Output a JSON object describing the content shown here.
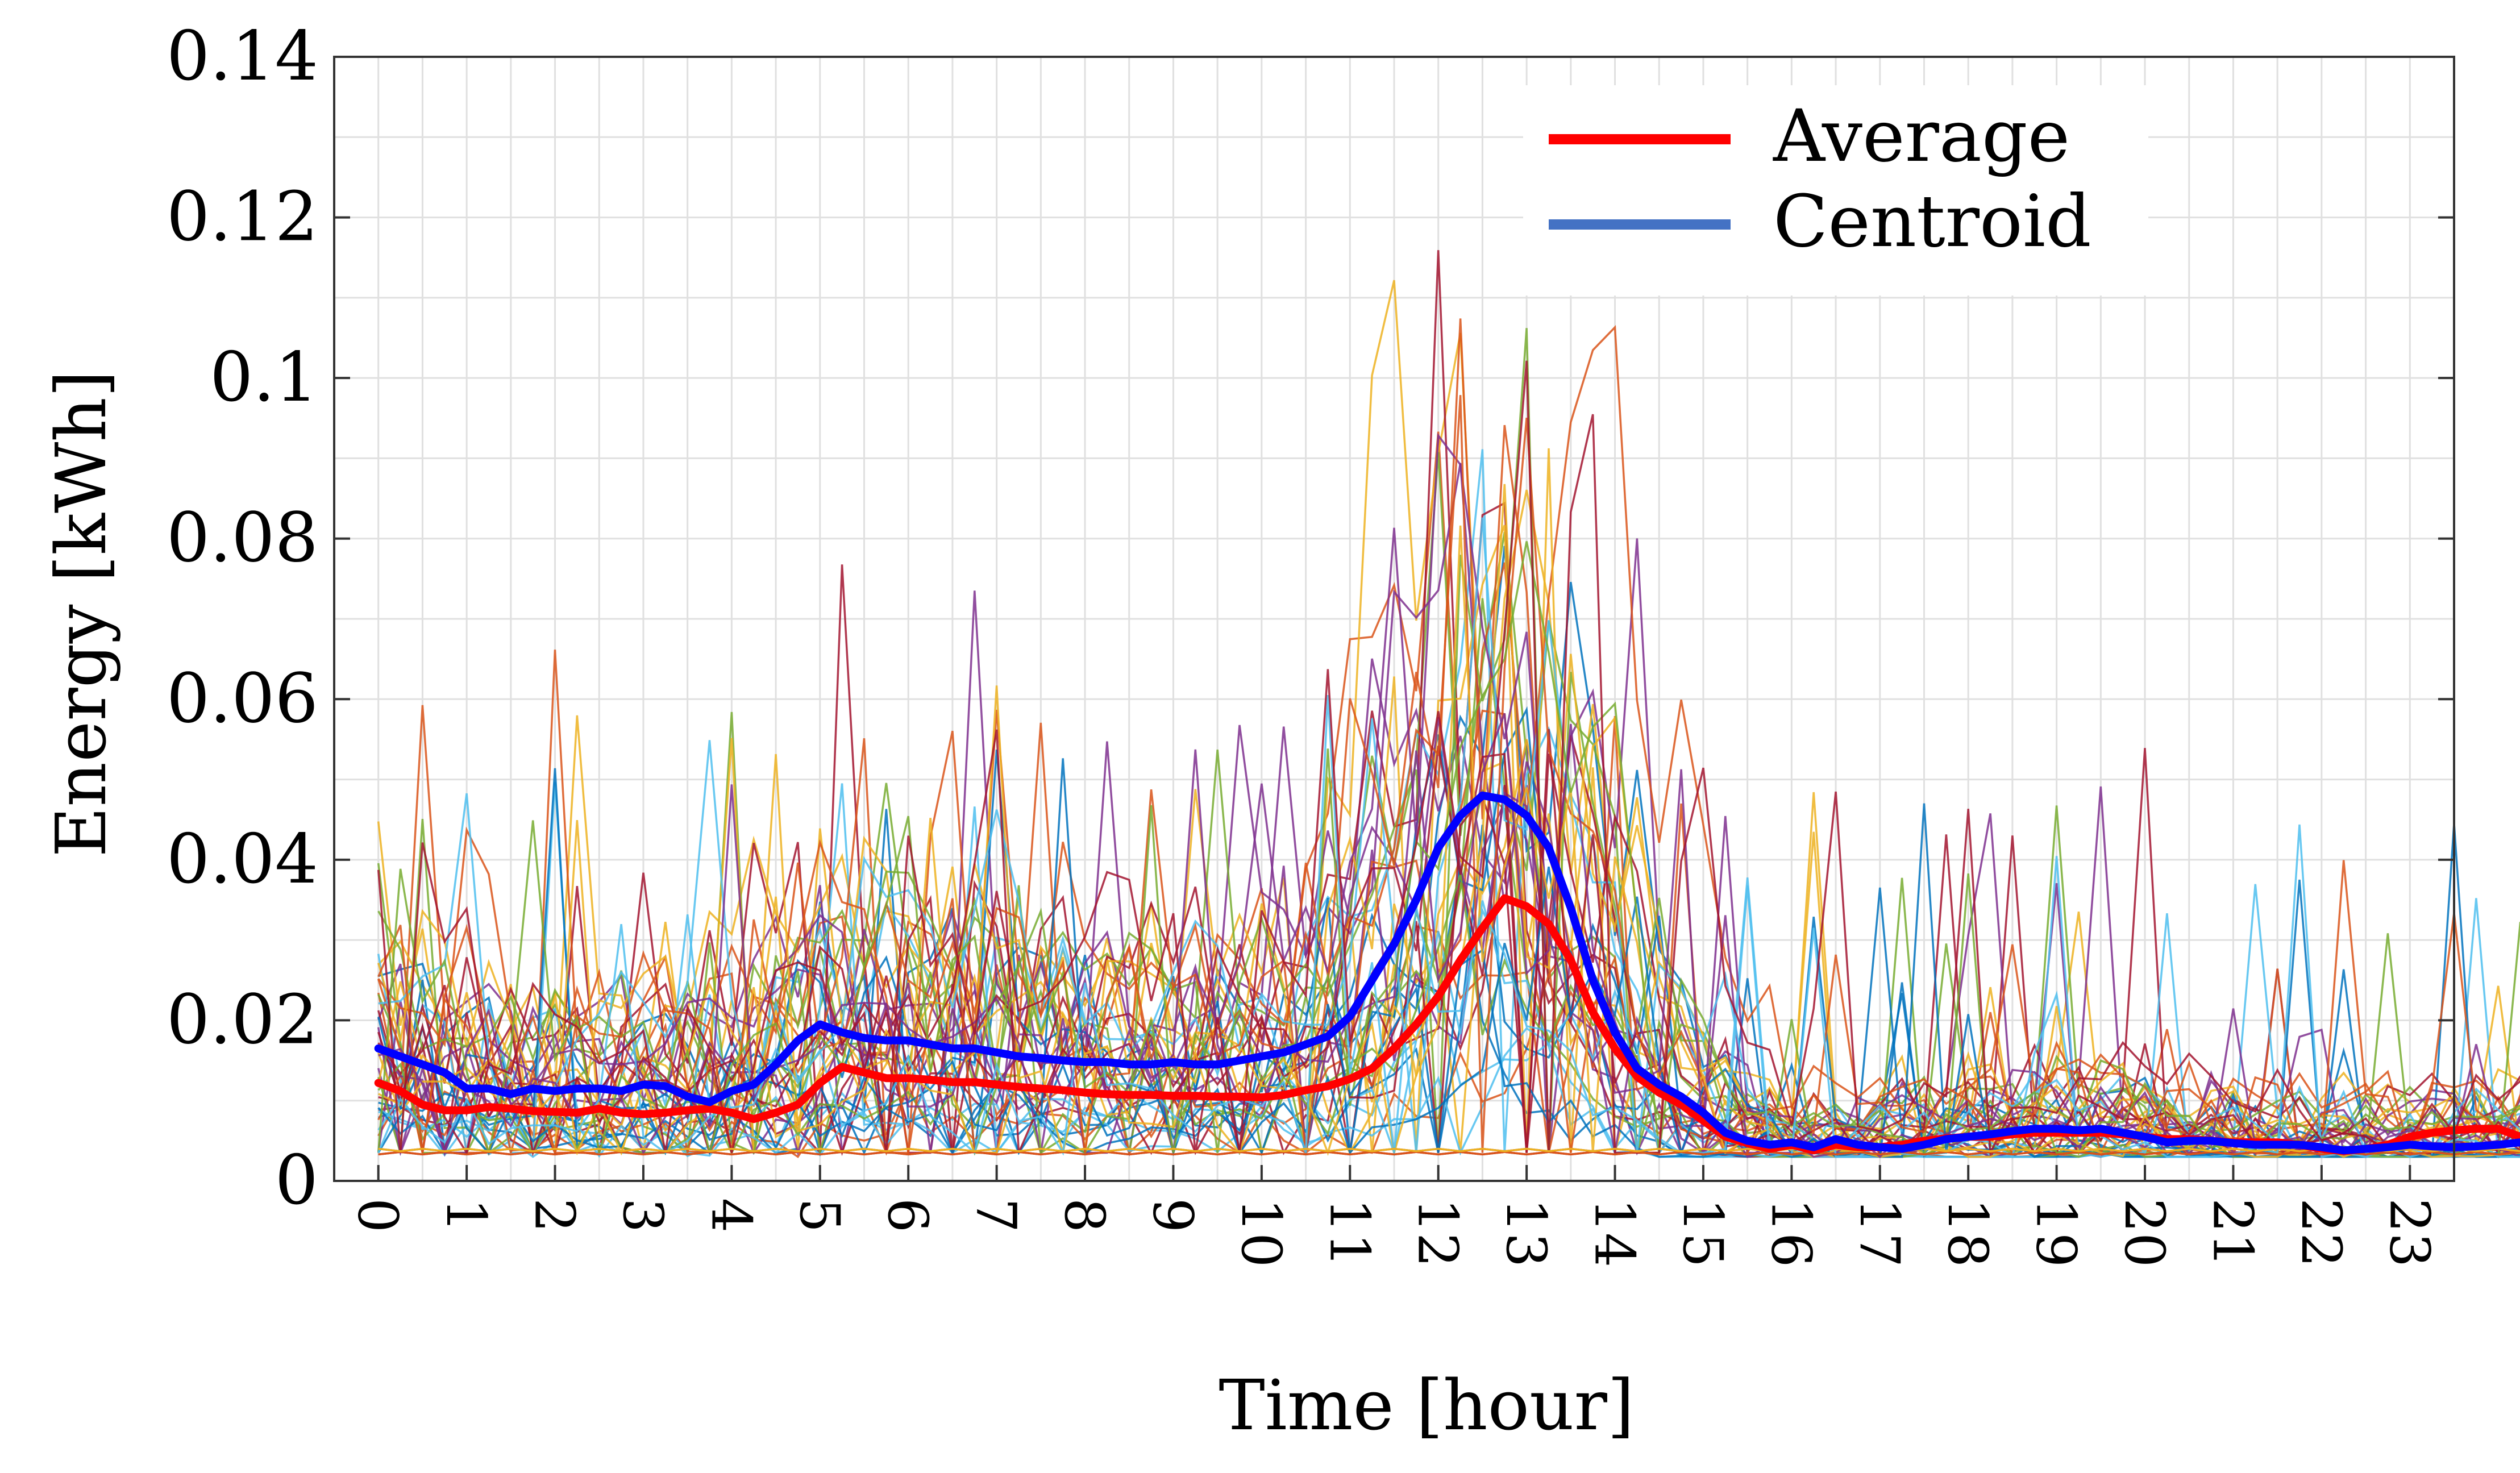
{
  "chart_data": {
    "type": "line",
    "title": "",
    "xlabel": "Time [hour]",
    "ylabel": "Energy [kWh]",
    "x_range": [
      -0.5,
      23.5
    ],
    "ylim": [
      0,
      0.14
    ],
    "y_ticks": [
      0,
      0.02,
      0.04,
      0.06,
      0.08,
      0.1,
      0.12,
      0.14
    ],
    "y_tick_labels": [
      "0",
      "0.02",
      "0.04",
      "0.06",
      "0.08",
      "0.1",
      "0.12",
      "0.14"
    ],
    "x_ticks": [
      0,
      1,
      2,
      3,
      4,
      5,
      6,
      7,
      8,
      9,
      10,
      11,
      12,
      13,
      14,
      15,
      16,
      17,
      18,
      19,
      20,
      21,
      22,
      23
    ],
    "x_tick_labels": [
      "0",
      "1",
      "2",
      "3",
      "4",
      "5",
      "6",
      "7",
      "8",
      "9",
      "10",
      "11",
      "12",
      "13",
      "14",
      "15",
      "16",
      "17",
      "18",
      "19",
      "20",
      "21",
      "22",
      "23"
    ],
    "grid": true,
    "legend_position": "top-right",
    "x_step_hours": 0.25,
    "series": [
      {
        "name": "Average",
        "color": "#ff0000",
        "values": [
          0.0122,
          0.0112,
          0.0095,
          0.0088,
          0.0088,
          0.0092,
          0.009,
          0.0087,
          0.0086,
          0.0085,
          0.009,
          0.0085,
          0.0083,
          0.0085,
          0.0088,
          0.009,
          0.0085,
          0.0077,
          0.0085,
          0.0095,
          0.0122,
          0.0142,
          0.0135,
          0.0128,
          0.0128,
          0.0126,
          0.0123,
          0.0123,
          0.012,
          0.0117,
          0.0115,
          0.0113,
          0.011,
          0.0108,
          0.0107,
          0.0107,
          0.0106,
          0.0106,
          0.0105,
          0.0105,
          0.0104,
          0.0107,
          0.0113,
          0.0118,
          0.0127,
          0.014,
          0.0165,
          0.0195,
          0.023,
          0.0275,
          0.0315,
          0.0352,
          0.0342,
          0.032,
          0.0275,
          0.021,
          0.0165,
          0.013,
          0.011,
          0.0095,
          0.0075,
          0.0055,
          0.0047,
          0.004,
          0.0045,
          0.0038,
          0.0045,
          0.0042,
          0.0042,
          0.0045,
          0.005,
          0.0053,
          0.0055,
          0.0055,
          0.0058,
          0.006,
          0.006,
          0.006,
          0.006,
          0.0058,
          0.0055,
          0.0052,
          0.0052,
          0.005,
          0.0048,
          0.0048,
          0.0048,
          0.0045,
          0.004,
          0.0037,
          0.004,
          0.0045,
          0.0055,
          0.006,
          0.0063,
          0.0065,
          0.0065,
          0.0055,
          0.005,
          0.0048,
          0.0055,
          0.0058,
          0.0055,
          0.0055,
          0.0058,
          0.006,
          0.0063,
          0.0068,
          0.0072,
          0.0075,
          0.0075,
          0.0078,
          0.0082,
          0.0088,
          0.009,
          0.009,
          0.0095,
          0.0108,
          0.012,
          0.0138,
          0.0152,
          0.016,
          0.0162,
          0.0162,
          0.0163,
          0.0173,
          0.0186,
          0.0205,
          0.0205,
          0.0203,
          0.0205,
          0.0225,
          0.0265,
          0.0272,
          0.0285,
          0.0305,
          0.033,
          0.036,
          0.0395,
          0.0412,
          0.0395,
          0.0375,
          0.035,
          0.034,
          0.032,
          0.0295,
          0.0268,
          0.0245,
          0.023,
          0.0215,
          0.0195,
          0.0165,
          0.0135
        ]
      },
      {
        "name": "Centroid",
        "color": "#0000ff",
        "legend_color": "#4472c4",
        "values": [
          0.0165,
          0.0155,
          0.0145,
          0.0135,
          0.0115,
          0.0115,
          0.0108,
          0.0115,
          0.0112,
          0.0115,
          0.0115,
          0.0112,
          0.012,
          0.0118,
          0.0105,
          0.0098,
          0.0112,
          0.012,
          0.0145,
          0.0175,
          0.0195,
          0.0185,
          0.0178,
          0.0175,
          0.0175,
          0.017,
          0.0165,
          0.0165,
          0.016,
          0.0155,
          0.0153,
          0.015,
          0.0148,
          0.0148,
          0.0145,
          0.0145,
          0.0148,
          0.0145,
          0.0145,
          0.015,
          0.0155,
          0.016,
          0.017,
          0.018,
          0.0205,
          0.025,
          0.0295,
          0.035,
          0.0415,
          0.0455,
          0.048,
          0.0475,
          0.0455,
          0.0415,
          0.034,
          0.025,
          0.0185,
          0.014,
          0.012,
          0.0105,
          0.0085,
          0.006,
          0.005,
          0.0045,
          0.0048,
          0.0042,
          0.0052,
          0.0045,
          0.0042,
          0.004,
          0.0045,
          0.0052,
          0.0055,
          0.0058,
          0.0062,
          0.0065,
          0.0065,
          0.0063,
          0.0065,
          0.006,
          0.0055,
          0.0048,
          0.005,
          0.005,
          0.0047,
          0.0045,
          0.0045,
          0.0045,
          0.0042,
          0.0038,
          0.004,
          0.0042,
          0.0045,
          0.0043,
          0.0042,
          0.0043,
          0.0045,
          0.0048,
          0.005,
          0.0052,
          0.0075,
          0.007,
          0.0065,
          0.0068,
          0.0072,
          0.0075,
          0.0082,
          0.009,
          0.0095,
          0.0105,
          0.0115,
          0.0112,
          0.0128,
          0.0125,
          0.0122,
          0.0135,
          0.0155,
          0.0185,
          0.0215,
          0.0235,
          0.024,
          0.0243,
          0.025,
          0.028,
          0.0312,
          0.0305,
          0.0305,
          0.0315,
          0.0345,
          0.0415,
          0.0425,
          0.0445,
          0.0495,
          0.0535,
          0.0585,
          0.0648,
          0.0625,
          0.0575,
          0.0535,
          0.0495,
          0.0455,
          0.0415,
          0.0385,
          0.0355,
          0.0325,
          0.0285,
          0.024,
          0.0185
        ]
      }
    ],
    "background_lines_note": "many thin multicolored individual customer profiles (noise lines)"
  },
  "legend": {
    "items": [
      {
        "label": "Average",
        "color": "#ff0000"
      },
      {
        "label": "Centroid",
        "color": "#4472c4"
      }
    ]
  }
}
